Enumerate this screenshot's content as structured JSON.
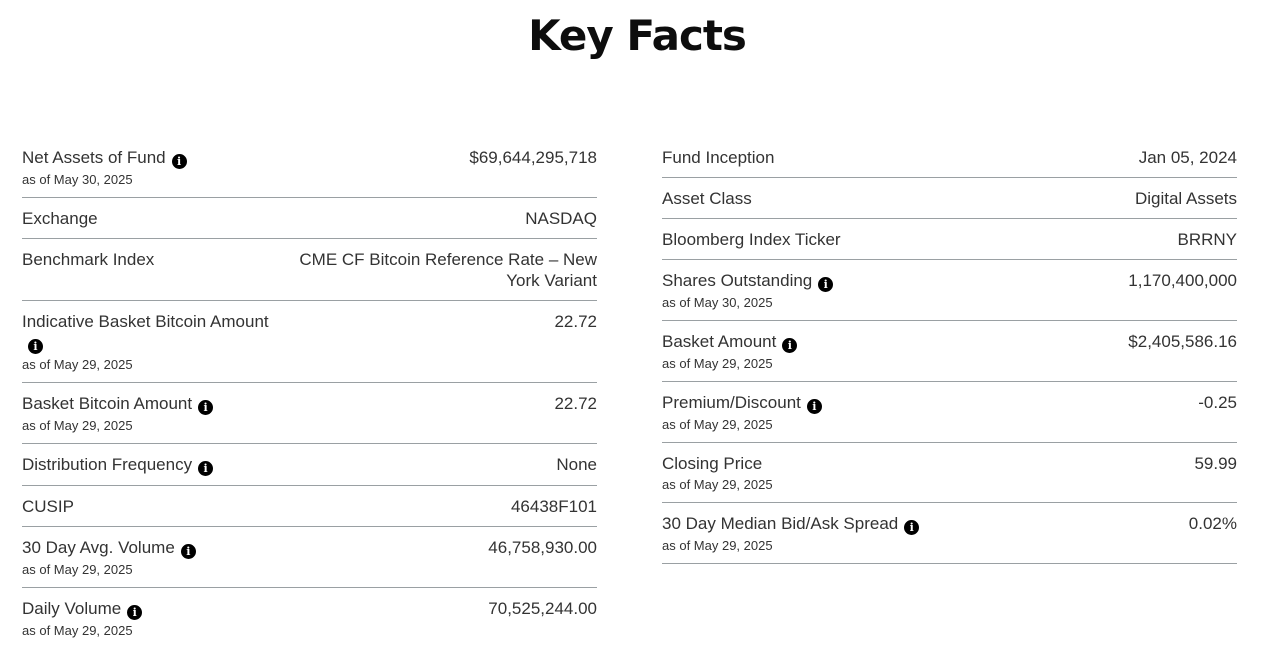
{
  "title": "Key Facts",
  "info_icon_glyph": "i",
  "colors": {
    "text": "#333333",
    "title": "#0d0d0d",
    "divider": "#9aa0a3",
    "icon_bg": "#000000",
    "icon_fg": "#ffffff"
  },
  "columns": {
    "left": [
      {
        "label": "Net Assets of Fund",
        "info": true,
        "as_of": "as of May 30, 2025",
        "value": "$69,644,295,718"
      },
      {
        "label": "Exchange",
        "info": false,
        "value": "NASDAQ"
      },
      {
        "label": "Benchmark Index",
        "info": false,
        "value": "CME CF Bitcoin Reference Rate – New York Variant"
      },
      {
        "label": "Indicative Basket Bitcoin Amount",
        "info": true,
        "icon_own_line": true,
        "as_of": "as of May 29, 2025",
        "value": "22.72"
      },
      {
        "label": "Basket Bitcoin Amount",
        "info": true,
        "as_of": "as of May 29, 2025",
        "value": "22.72"
      },
      {
        "label": "Distribution Frequency",
        "info": true,
        "value": "None"
      },
      {
        "label": "CUSIP",
        "info": false,
        "value": "46438F101"
      },
      {
        "label": "30 Day Avg. Volume",
        "info": true,
        "as_of": "as of May 29, 2025",
        "value": "46,758,930.00"
      },
      {
        "label": "Daily Volume",
        "info": true,
        "as_of": "as of May 29, 2025",
        "value": "70,525,244.00"
      }
    ],
    "right": [
      {
        "label": "Fund Inception",
        "info": false,
        "value": "Jan 05, 2024"
      },
      {
        "label": "Asset Class",
        "info": false,
        "value": "Digital Assets"
      },
      {
        "label": "Bloomberg Index Ticker",
        "info": false,
        "value": "BRRNY"
      },
      {
        "label": "Shares Outstanding",
        "info": true,
        "as_of": "as of May 30, 2025",
        "value": "1,170,400,000"
      },
      {
        "label": "Basket Amount",
        "info": true,
        "as_of": "as of May 29, 2025",
        "value": "$2,405,586.16"
      },
      {
        "label": "Premium/Discount",
        "info": true,
        "as_of": "as of May 29, 2025",
        "value": "-0.25"
      },
      {
        "label": "Closing Price",
        "info": false,
        "as_of": "as of May 29, 2025",
        "value": "59.99"
      },
      {
        "label": "30 Day Median Bid/Ask Spread",
        "info": true,
        "as_of": "as of May 29, 2025",
        "value": "0.02%"
      }
    ]
  }
}
